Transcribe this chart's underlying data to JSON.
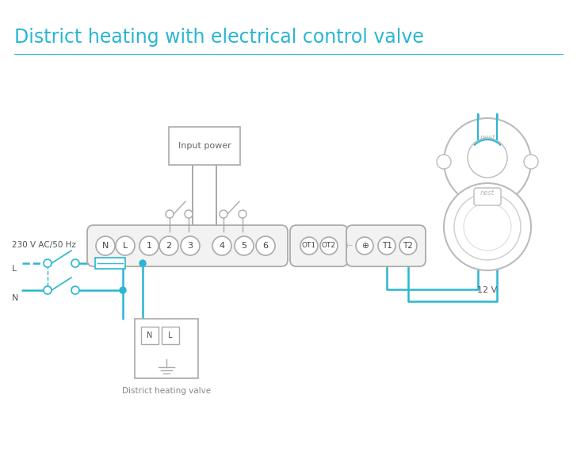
{
  "title": "District heating with electrical control valve",
  "title_color": "#29b6d2",
  "bg_color": "#ffffff",
  "line_color": "#29b6d2",
  "device_color": "#999999",
  "text_color": "#555555",
  "wire_lw": 1.8,
  "term_labels_main": [
    "N",
    "L",
    "1",
    "2",
    "3",
    "4",
    "5",
    "6"
  ],
  "term_labels_ot": [
    "OT1",
    "OT2"
  ],
  "term_labels_right": [
    "⊕",
    "T1",
    "T2"
  ]
}
